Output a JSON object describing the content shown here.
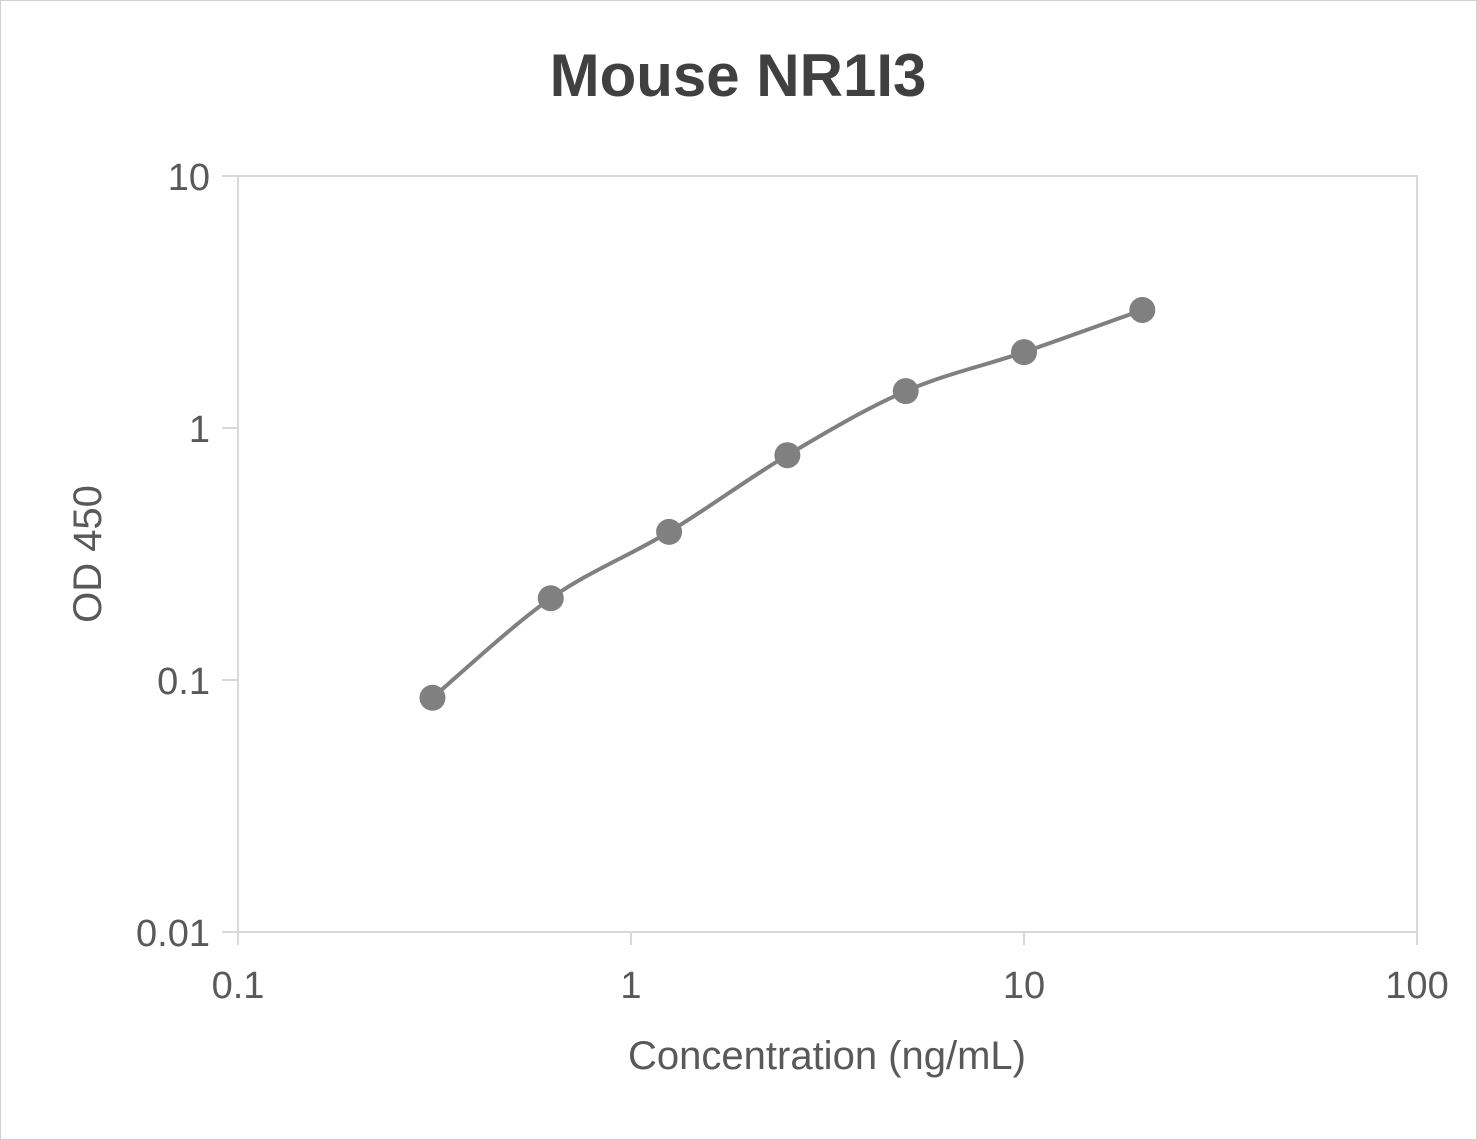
{
  "chart_data": {
    "type": "line",
    "title": "Mouse NR1I3",
    "xlabel": "Concentration (ng/mL)",
    "ylabel": "OD 450",
    "x_scale": "log",
    "y_scale": "log",
    "xlim": [
      0.1,
      100
    ],
    "ylim": [
      0.01,
      10
    ],
    "x_ticks": [
      "0.1",
      "1",
      "10",
      "100"
    ],
    "y_ticks": [
      "0.01",
      "0.1",
      "1",
      "10"
    ],
    "grid": false,
    "legend": "none",
    "smooth": true,
    "series": [
      {
        "color": "#808080",
        "x": [
          0.3125,
          0.625,
          1.25,
          2.5,
          5,
          10,
          20
        ],
        "y": [
          0.085,
          0.211,
          0.387,
          0.78,
          1.4,
          2.0,
          2.94
        ]
      }
    ]
  }
}
